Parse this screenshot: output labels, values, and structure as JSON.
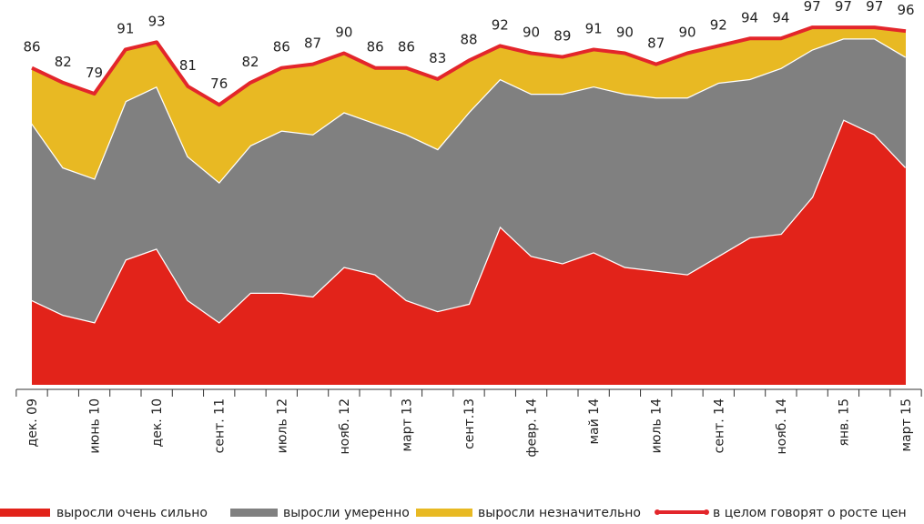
{
  "chart_data": {
    "type": "stacked-area",
    "categories": [
      "дек. 09",
      null,
      "июнь 10",
      null,
      "дек. 10",
      null,
      "сент. 11",
      null,
      "июль 12",
      null,
      "нояб. 12",
      null,
      "март 13",
      null,
      "сент.13",
      null,
      "февр. 14",
      null,
      "май 14",
      null,
      "июль 14",
      null,
      "сент. 14",
      null,
      "нояб. 14",
      null,
      "янв. 15",
      null,
      "март 15"
    ],
    "series": [
      {
        "name": "выросли очень сильно",
        "color": "#e2231a",
        "values": [
          23,
          19,
          17,
          34,
          37,
          23,
          17,
          25,
          25,
          24,
          32,
          30,
          23,
          20,
          22,
          43,
          35,
          33,
          36,
          32,
          31,
          30,
          35,
          40,
          41,
          51,
          72,
          68,
          59
        ]
      },
      {
        "name": "выросли умеренно",
        "color": "#808080",
        "values": [
          48,
          40,
          39,
          43,
          44,
          39,
          38,
          40,
          44,
          44,
          42,
          41,
          45,
          44,
          52,
          40,
          44,
          46,
          45,
          47,
          47,
          48,
          47,
          43,
          45,
          40,
          22,
          26,
          30
        ]
      },
      {
        "name": "выросли незначительно",
        "color": "#e8b923",
        "values": [
          15,
          23,
          23,
          14,
          12,
          19,
          21,
          17,
          17,
          19,
          16,
          15,
          18,
          19,
          14,
          9,
          11,
          10,
          10,
          11,
          9,
          12,
          10,
          11,
          8,
          6,
          3,
          3,
          7
        ]
      }
    ],
    "total": {
      "name": "в целом говорят о росте цен",
      "color": "#e3262b",
      "values": [
        86,
        82,
        79,
        91,
        93,
        81,
        76,
        82,
        86,
        87,
        90,
        86,
        86,
        83,
        88,
        92,
        90,
        89,
        91,
        90,
        87,
        90,
        92,
        94,
        94,
        97,
        97,
        97,
        96
      ]
    }
  }
}
